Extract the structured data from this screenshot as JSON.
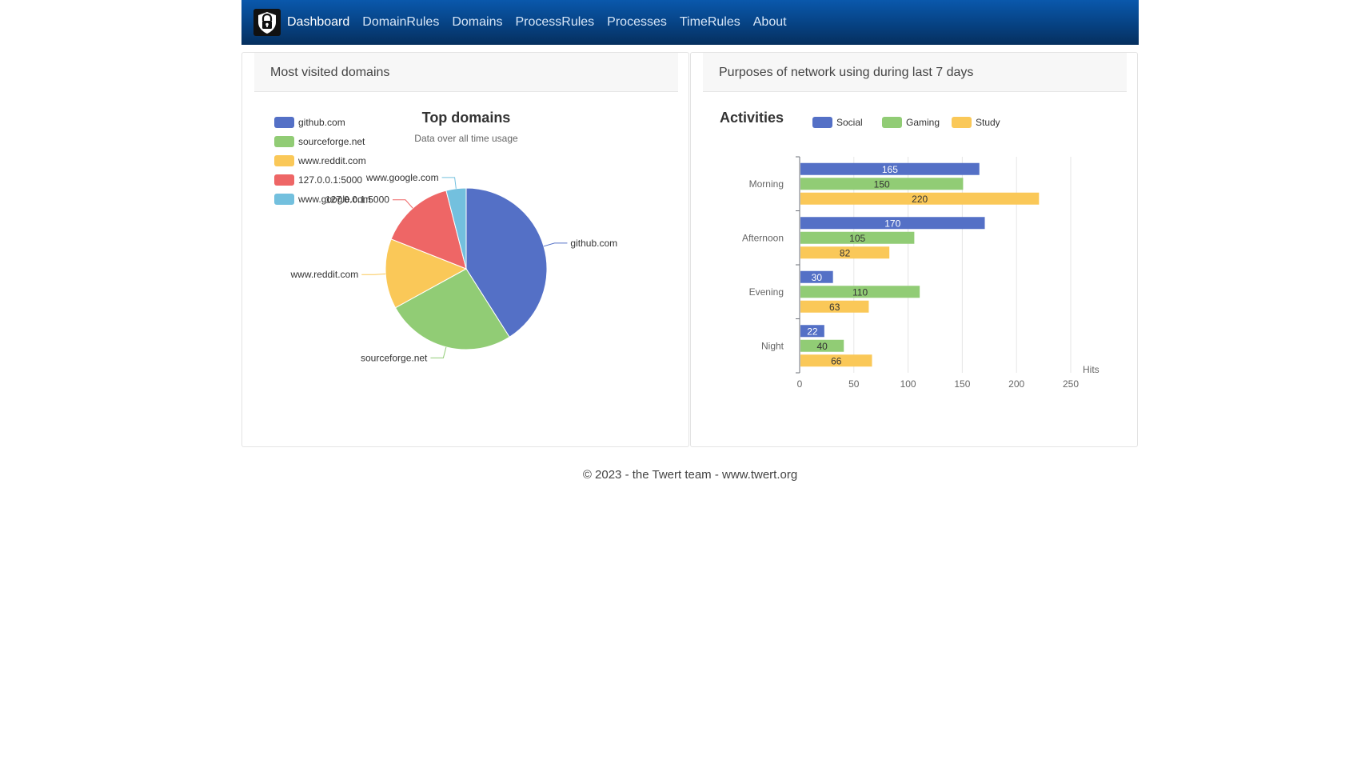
{
  "nav": {
    "items": [
      {
        "label": "Dashboard",
        "active": true
      },
      {
        "label": "DomainRules"
      },
      {
        "label": "Domains"
      },
      {
        "label": "ProcessRules"
      },
      {
        "label": "Processes"
      },
      {
        "label": "TimeRules"
      },
      {
        "label": "About"
      }
    ],
    "logo_icon": "padlock-shield-icon"
  },
  "panels": {
    "left": {
      "header": "Most visited domains"
    },
    "right": {
      "header": "Purposes of network using during last 7 days"
    }
  },
  "footer": {
    "text": "© 2023 - the Twert team - www.twert.org"
  },
  "chart_data": [
    {
      "type": "pie",
      "title": "Top domains",
      "subtitle": "Data over all time usage",
      "legend_position": "top-left",
      "categories": [
        "github.com",
        "sourceforge.net",
        "www.reddit.com",
        "127.0.0.1:5000",
        "www.google.com"
      ],
      "values": [
        41,
        26,
        14,
        15,
        4
      ],
      "colors": [
        "#5470c6",
        "#91cc75",
        "#fac858",
        "#ee6666",
        "#73c0de"
      ]
    },
    {
      "type": "bar",
      "orientation": "horizontal",
      "title": "Activities",
      "legend_position": "top",
      "categories": [
        "Morning",
        "Afternoon",
        "Evening",
        "Night"
      ],
      "series": [
        {
          "name": "Social",
          "values": [
            165,
            170,
            30,
            22
          ],
          "color": "#5470c6"
        },
        {
          "name": "Gaming",
          "values": [
            150,
            105,
            110,
            40
          ],
          "color": "#91cc75"
        },
        {
          "name": "Study",
          "values": [
            220,
            82,
            63,
            66
          ],
          "color": "#fac858"
        }
      ],
      "xlabel": "Hits",
      "ylabel": "",
      "xlim": [
        0,
        250
      ],
      "xticks": [
        0,
        50,
        100,
        150,
        200,
        250
      ],
      "grid": true
    }
  ]
}
